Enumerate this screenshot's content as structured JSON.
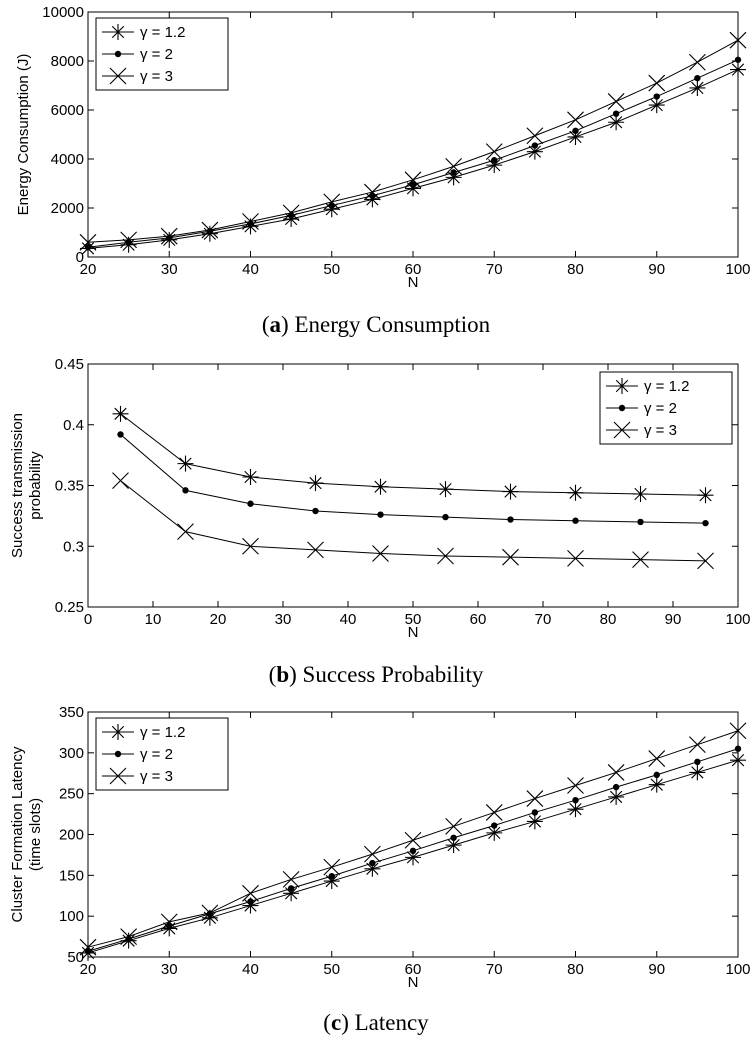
{
  "figure": {
    "subfigures": [
      {
        "label": "a",
        "caption": "Energy Consumption"
      },
      {
        "label": "b",
        "caption": "Success Probability"
      },
      {
        "label": "c",
        "caption": "Latency"
      }
    ]
  },
  "chart_data": [
    {
      "type": "line",
      "xlabel": "N",
      "ylabel": "Energy Consumption (J)",
      "xlim": [
        20,
        100
      ],
      "ylim": [
        0,
        10000
      ],
      "xticks": [
        20,
        30,
        40,
        50,
        60,
        70,
        80,
        90,
        100
      ],
      "yticks": [
        0,
        2000,
        4000,
        6000,
        8000,
        10000
      ],
      "legend_position": "top-left",
      "grid": false,
      "x": [
        20,
        25,
        30,
        35,
        40,
        45,
        50,
        55,
        60,
        65,
        70,
        75,
        80,
        85,
        90,
        95,
        100
      ],
      "series": [
        {
          "name": "γ = 1.2",
          "marker": "asterisk",
          "values": [
            350,
            500,
            700,
            950,
            1250,
            1550,
            1950,
            2350,
            2800,
            3250,
            3750,
            4300,
            4900,
            5500,
            6200,
            6900,
            7650
          ]
        },
        {
          "name": "γ = 2",
          "marker": "dot",
          "values": [
            400,
            600,
            780,
            1050,
            1350,
            1700,
            2100,
            2500,
            2950,
            3450,
            3950,
            4550,
            5150,
            5850,
            6550,
            7300,
            8050
          ]
        },
        {
          "name": "γ = 3",
          "marker": "x",
          "values": [
            600,
            700,
            850,
            1100,
            1450,
            1800,
            2250,
            2650,
            3150,
            3700,
            4300,
            4950,
            5600,
            6350,
            7100,
            7950,
            8850
          ]
        }
      ]
    },
    {
      "type": "line",
      "xlabel": "N",
      "ylabel": "Success transmission probability",
      "ylabel_lines": [
        "Success transmission",
        "probability"
      ],
      "xlim": [
        0,
        100
      ],
      "ylim": [
        0.25,
        0.45
      ],
      "xticks": [
        0,
        10,
        20,
        30,
        40,
        50,
        60,
        70,
        80,
        90,
        100
      ],
      "yticks": [
        "0.25",
        "0.3",
        "0.35",
        "0.4",
        "0.45"
      ],
      "legend_position": "top-right",
      "grid": false,
      "x": [
        5,
        15,
        25,
        35,
        45,
        55,
        65,
        75,
        85,
        95
      ],
      "series": [
        {
          "name": "γ = 1.2",
          "marker": "asterisk",
          "values": [
            0.409,
            0.368,
            0.357,
            0.352,
            0.349,
            0.347,
            0.345,
            0.344,
            0.343,
            0.342
          ]
        },
        {
          "name": "γ = 2",
          "marker": "dot",
          "values": [
            0.392,
            0.346,
            0.335,
            0.329,
            0.326,
            0.324,
            0.322,
            0.321,
            0.32,
            0.319
          ]
        },
        {
          "name": "γ = 3",
          "marker": "x",
          "values": [
            0.354,
            0.312,
            0.3,
            0.297,
            0.294,
            0.292,
            0.291,
            0.29,
            0.289,
            0.288
          ]
        }
      ]
    },
    {
      "type": "line",
      "xlabel": "N",
      "ylabel": "Cluster Formation Latency (time slots)",
      "ylabel_lines": [
        "Cluster Formation Latency",
        "(time slots)"
      ],
      "xlim": [
        20,
        100
      ],
      "ylim": [
        50,
        350
      ],
      "xticks": [
        20,
        30,
        40,
        50,
        60,
        70,
        80,
        90,
        100
      ],
      "yticks": [
        50,
        100,
        150,
        200,
        250,
        300,
        350
      ],
      "legend_position": "top-left",
      "grid": false,
      "x": [
        20,
        25,
        30,
        35,
        40,
        45,
        50,
        55,
        60,
        65,
        70,
        75,
        80,
        85,
        90,
        95,
        100
      ],
      "series": [
        {
          "name": "γ = 1.2",
          "marker": "asterisk",
          "values": [
            55,
            70,
            85,
            98,
            113,
            128,
            143,
            158,
            172,
            187,
            202,
            216,
            231,
            246,
            261,
            276,
            291
          ]
        },
        {
          "name": "γ = 2",
          "marker": "dot",
          "values": [
            57,
            72,
            88,
            103,
            118,
            134,
            149,
            165,
            180,
            196,
            211,
            227,
            242,
            258,
            273,
            289,
            305
          ]
        },
        {
          "name": "γ = 3",
          "marker": "x",
          "values": [
            62,
            75,
            93,
            104,
            128,
            145,
            160,
            176,
            193,
            210,
            227,
            244,
            260,
            276,
            293,
            310,
            327
          ]
        }
      ]
    }
  ]
}
